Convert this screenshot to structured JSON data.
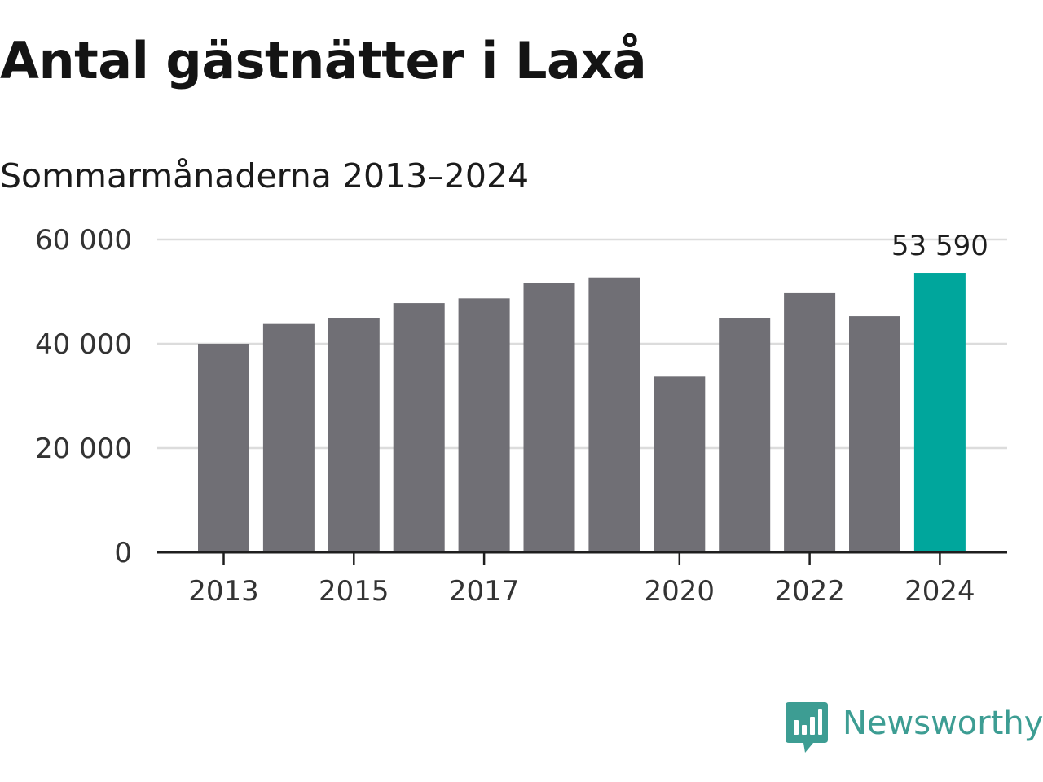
{
  "header": {
    "title": "Antal gästnätter i Laxå",
    "subtitle": "Sommarmånaderna 2013–2024"
  },
  "chart_data": {
    "type": "bar",
    "categories": [
      "2013",
      "2014",
      "2015",
      "2016",
      "2017",
      "2018",
      "2019",
      "2020",
      "2021",
      "2022",
      "2023",
      "2024"
    ],
    "values": [
      40000,
      43800,
      45000,
      47800,
      48700,
      51600,
      52700,
      33700,
      45000,
      49700,
      45300,
      53590
    ],
    "x_tick_labels": [
      "2013",
      "2015",
      "2017",
      "2020",
      "2022",
      "2024"
    ],
    "y_ticks": [
      0,
      20000,
      40000,
      60000
    ],
    "y_tick_labels": [
      "0",
      "20 000",
      "40 000",
      "60 000"
    ],
    "ylim": [
      0,
      60000
    ],
    "grid": true,
    "highlight": {
      "category": "2024",
      "label": "53 590"
    },
    "colors": {
      "bar": "#706f75",
      "highlight": "#00a69c",
      "grid": "#dcdcdc",
      "axis": "#1e1e1e"
    }
  },
  "brand": {
    "name": "Newsworthy",
    "logo_icon": "newsworthy-logo-icon",
    "color": "#3d9d93"
  }
}
